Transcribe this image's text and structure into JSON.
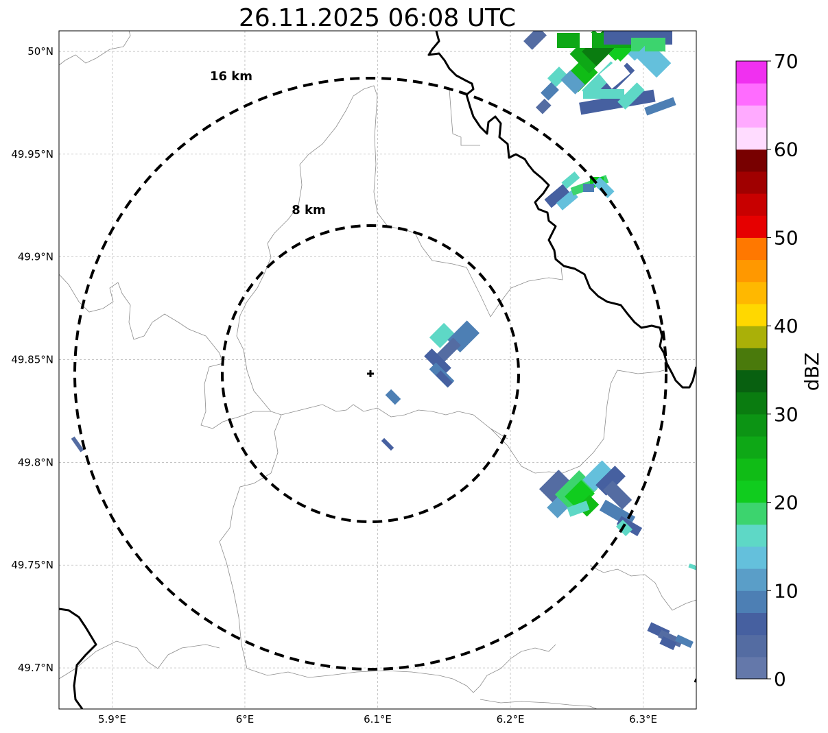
{
  "title": "26.11.2025 06:08 UTC",
  "map": {
    "lon_range": [
      5.86,
      6.34
    ],
    "lat_range": [
      49.68,
      50.01
    ],
    "lon_ticks": [
      {
        "value": 5.9,
        "label": "5.9°E"
      },
      {
        "value": 6.0,
        "label": "6°E"
      },
      {
        "value": 6.1,
        "label": "6.1°E"
      },
      {
        "value": 6.2,
        "label": "6.2°E"
      },
      {
        "value": 6.3,
        "label": "6.3°E"
      }
    ],
    "lat_ticks": [
      {
        "value": 50.0,
        "label": "50°N"
      },
      {
        "value": 49.95,
        "label": "49.95°N"
      },
      {
        "value": 49.9,
        "label": "49.9°N"
      },
      {
        "value": 49.85,
        "label": "49.85°N"
      },
      {
        "value": 49.8,
        "label": "49.8°N"
      },
      {
        "value": 49.75,
        "label": "49.75°N"
      },
      {
        "value": 49.7,
        "label": "49.7°N"
      }
    ],
    "grid": true,
    "center": {
      "lon": 6.094,
      "lat": 49.843
    },
    "range_rings": [
      {
        "label": "16 km",
        "radius_km": 16
      },
      {
        "label": "8 km",
        "radius_km": 8
      }
    ]
  },
  "colorbar": {
    "label": "dBZ",
    "min": 0,
    "max": 70,
    "step": 2.5,
    "tick_labels": [
      "0",
      "10",
      "20",
      "30",
      "40",
      "50",
      "60",
      "70"
    ],
    "colors": [
      "#6478aa",
      "#546ca2",
      "#4660a0",
      "#4d7fb4",
      "#5a9ec8",
      "#64c0dc",
      "#5ed8c6",
      "#3cd46e",
      "#10cc1e",
      "#10bc16",
      "#0ea816",
      "#0c9414",
      "#0a7c10",
      "#086010",
      "#4a7a0c",
      "#aab008",
      "#ffd800",
      "#ffb800",
      "#ff9800",
      "#ff7800",
      "#e60000",
      "#c80000",
      "#a00000",
      "#780000",
      "#ffdcff",
      "#ffaaff",
      "#ff6cff",
      "#f030f0"
    ]
  },
  "echoes": [
    {
      "lon": 6.275,
      "lat": 49.995,
      "dbz": 10
    },
    {
      "lon": 6.265,
      "lat": 49.985,
      "dbz": 22
    },
    {
      "lon": 6.255,
      "lat": 49.978,
      "dbz": 28
    },
    {
      "lon": 6.262,
      "lat": 50.002,
      "dbz": 30
    },
    {
      "lon": 6.25,
      "lat": 49.97,
      "dbz": 16
    },
    {
      "lon": 6.28,
      "lat": 49.97,
      "dbz": 8
    },
    {
      "lon": 6.3,
      "lat": 49.98,
      "dbz": 14
    },
    {
      "lon": 6.24,
      "lat": 49.935,
      "dbz": 6
    },
    {
      "lon": 6.265,
      "lat": 49.933,
      "dbz": 20
    },
    {
      "lon": 6.147,
      "lat": 49.855,
      "dbz": 12
    },
    {
      "lon": 6.142,
      "lat": 49.845,
      "dbz": 5
    },
    {
      "lon": 6.11,
      "lat": 49.832,
      "dbz": 5
    },
    {
      "lon": 6.105,
      "lat": 49.808,
      "dbz": 5
    },
    {
      "lon": 6.245,
      "lat": 49.785,
      "dbz": 20
    },
    {
      "lon": 6.27,
      "lat": 49.775,
      "dbz": 6
    },
    {
      "lon": 6.32,
      "lat": 49.715,
      "dbz": 5
    },
    {
      "lon": 5.873,
      "lat": 49.808,
      "dbz": 5
    },
    {
      "lon": 6.338,
      "lat": 49.749,
      "dbz": 15
    }
  ]
}
